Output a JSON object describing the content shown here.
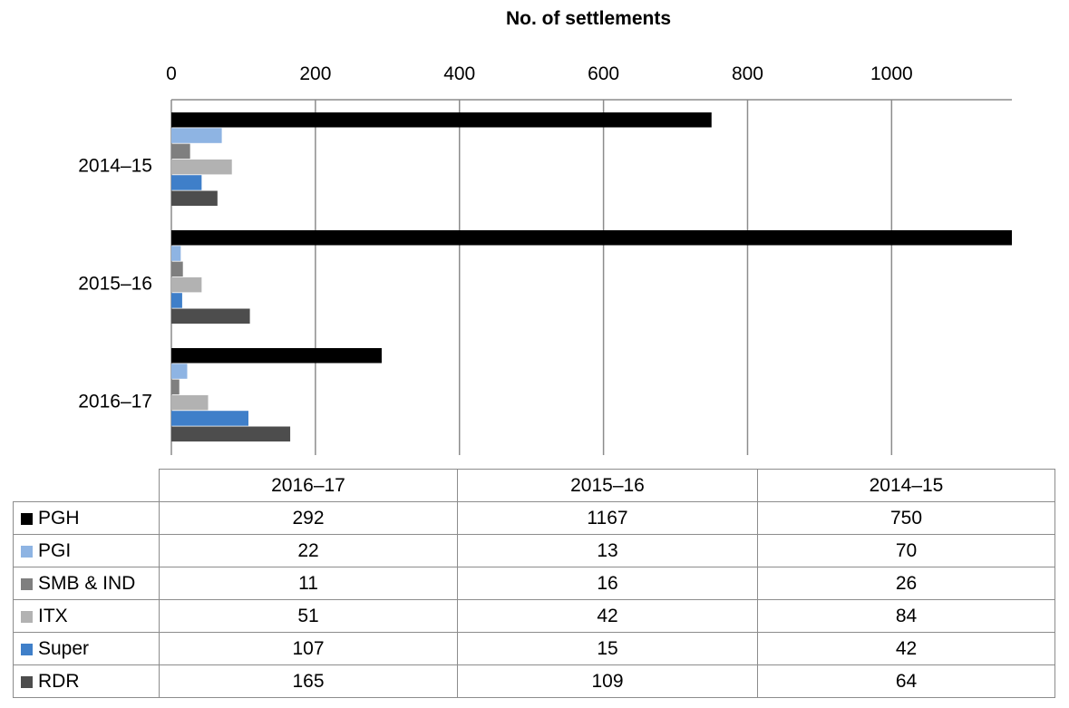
{
  "chart_data": {
    "type": "bar",
    "orientation": "horizontal",
    "title": "",
    "xlabel": "No. of settlements",
    "ylabel": "",
    "xlim": [
      0,
      1167
    ],
    "x_ticks": [
      "0",
      "200",
      "400",
      "600",
      "800",
      "1000"
    ],
    "grid": true,
    "categories": [
      "2016–17",
      "2015–16",
      "2014–15"
    ],
    "category_display_order": [
      "2014–15",
      "2015–16",
      "2016–17"
    ],
    "series": [
      {
        "name": "PGH",
        "color": "#000000",
        "values": [
          292,
          1167,
          750
        ]
      },
      {
        "name": "PGI",
        "color": "#8eb4e3",
        "values": [
          22,
          13,
          70
        ]
      },
      {
        "name": "SMB & IND",
        "color": "#7f7f7f",
        "values": [
          11,
          16,
          26
        ]
      },
      {
        "name": "ITX",
        "color": "#b2b2b2",
        "values": [
          51,
          42,
          84
        ]
      },
      {
        "name": "Super",
        "color": "#3f7fc9",
        "values": [
          107,
          15,
          42
        ]
      },
      {
        "name": "RDR",
        "color": "#4d4d4d",
        "values": [
          165,
          109,
          64
        ]
      }
    ],
    "legend": "data-table below chart"
  }
}
